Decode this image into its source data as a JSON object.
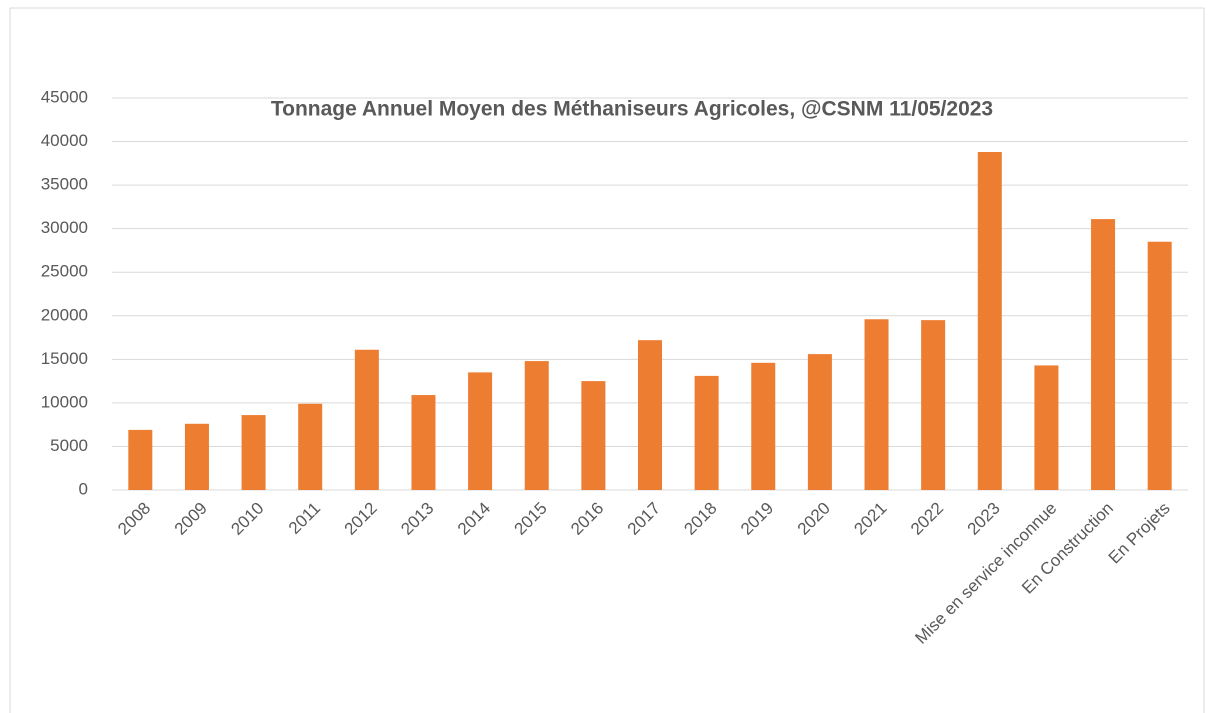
{
  "chart_data": {
    "type": "bar",
    "title": "Tonnage Annuel Moyen des Méthaniseurs Agricoles, @CSNM 11/05/2023",
    "categories": [
      "2008",
      "2009",
      "2010",
      "2011",
      "2012",
      "2013",
      "2014",
      "2015",
      "2016",
      "2017",
      "2018",
      "2019",
      "2020",
      "2021",
      "2022",
      "2023",
      "Mise en service inconnue",
      "En Construction",
      "En Projets"
    ],
    "values": [
      6900,
      7600,
      8600,
      9900,
      16100,
      10900,
      13500,
      14800,
      12500,
      17200,
      13100,
      14600,
      15600,
      19600,
      19500,
      38800,
      14300,
      31100,
      28500
    ],
    "color": "#ed7d31",
    "ylim": [
      0,
      45000
    ],
    "yticks": [
      0,
      5000,
      10000,
      15000,
      20000,
      25000,
      30000,
      35000,
      40000,
      45000
    ],
    "grid": true
  }
}
